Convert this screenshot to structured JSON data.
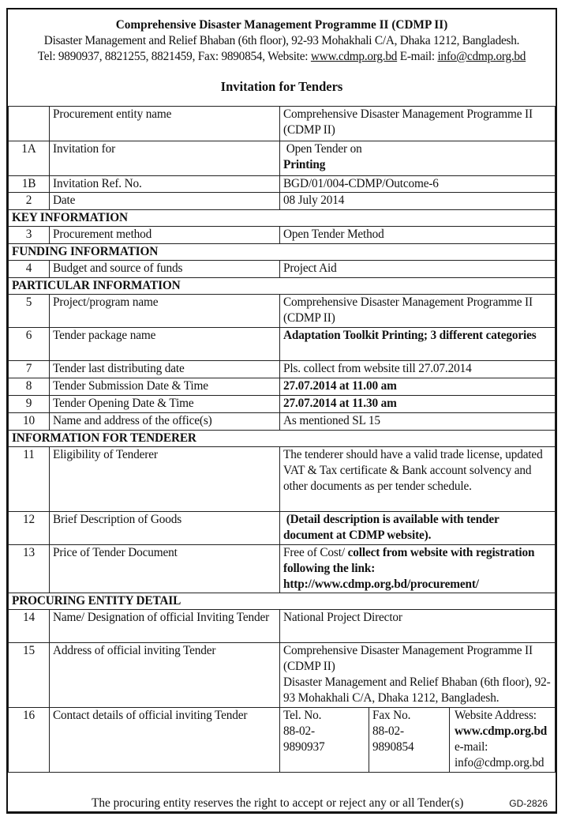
{
  "header": {
    "org": "Comprehensive Disaster Management Programme II (CDMP II)",
    "address": "Disaster Management and Relief Bhaban (6th floor), 92-93 Mohakhali C/A, Dhaka 1212, Bangladesh.",
    "contact_prefix": "Tel: 9890937, 8821255, 8821459, Fax: 9890854, Website: ",
    "website": "www.cdmp.org.bd",
    "email_prefix": " E-mail: ",
    "email": "info@cdmp.org.bd",
    "title": "Invitation for Tenders"
  },
  "rows": [
    {
      "no": "",
      "label": "Procurement entity name",
      "value": "Comprehensive Disaster Management Programme II (CDMP II)"
    },
    {
      "no": "1A",
      "label": "Invitation for",
      "value": "Open Tender on",
      "value2": "Printing"
    },
    {
      "no": "1B",
      "label": "Invitation Ref. No.",
      "value": "BGD/01/004-CDMP/Outcome-6"
    },
    {
      "no": "2",
      "label": "Date",
      "value": "08 July 2014"
    },
    {
      "section": "KEY INFORMATION"
    },
    {
      "no": "3",
      "label": "Procurement method",
      "value": "Open Tender Method"
    },
    {
      "section": "FUNDING INFORMATION"
    },
    {
      "no": "4",
      "label": "Budget and source of funds",
      "value": "Project Aid"
    },
    {
      "section": "PARTICULAR INFORMATION"
    },
    {
      "no": "5",
      "label": "Project/program name",
      "value": "Comprehensive Disaster Management Programme II (CDMP II)"
    },
    {
      "no": "6",
      "label": "Tender package name",
      "value": "Adaptation Toolkit Printing; 3 different categories"
    },
    {
      "no": "7",
      "label": "Tender last distributing date",
      "value": "Pls. collect from website till 27.07.2014"
    },
    {
      "no": "8",
      "label": "Tender Submission Date & Time",
      "value": "27.07.2014 at 11.00 am"
    },
    {
      "no": "9",
      "label": "Tender Opening Date & Time",
      "value": "27.07.2014 at 11.30 am"
    },
    {
      "no": "10",
      "label": "Name and address of the office(s)",
      "value": "As mentioned SL 15"
    },
    {
      "section": "INFORMATION FOR TENDERER"
    },
    {
      "no": "11",
      "label": "Eligibility of Tenderer",
      "value": "The tenderer should have a valid trade license, updated VAT & Tax certificate & Bank account solvency and other documents as per tender schedule."
    },
    {
      "no": "12",
      "label": "Brief Description of Goods",
      "value": "(Detail description is available with tender document at CDMP website)."
    },
    {
      "no": "13",
      "label": "Price of Tender Document",
      "value": "Free of Cost/",
      "value2": " collect from website with registration following the link:",
      "value3": "http://www.cdmp.org.bd/procurement/"
    },
    {
      "section": "PROCURING ENTITY DETAIL"
    },
    {
      "no": "14",
      "label": "Name/ Designation of official Inviting Tender",
      "value": "National Project Director"
    },
    {
      "no": "15",
      "label": "Address of official inviting Tender",
      "value": "Comprehensive Disaster Management Programme II (CDMP II)",
      "value2": "Disaster Management and Relief Bhaban (6th floor), 92-93 Mohakhali C/A, Dhaka 1212, Bangladesh."
    },
    {
      "no": "16",
      "label": "Contact details of official inviting Tender",
      "tel_label": "Tel. No.",
      "tel": "88-02-9890937",
      "fax_label": "Fax No.",
      "fax": "88-02-9890854",
      "web_label": "Website Address:",
      "web": "www.cdmp.org.bd",
      "email_label": "e-mail:",
      "email": "info@cdmp.org.bd"
    }
  ],
  "footer": {
    "text": "The procuring entity reserves the right to accept or reject any or all Tender(s)",
    "code": "GD-2826"
  }
}
